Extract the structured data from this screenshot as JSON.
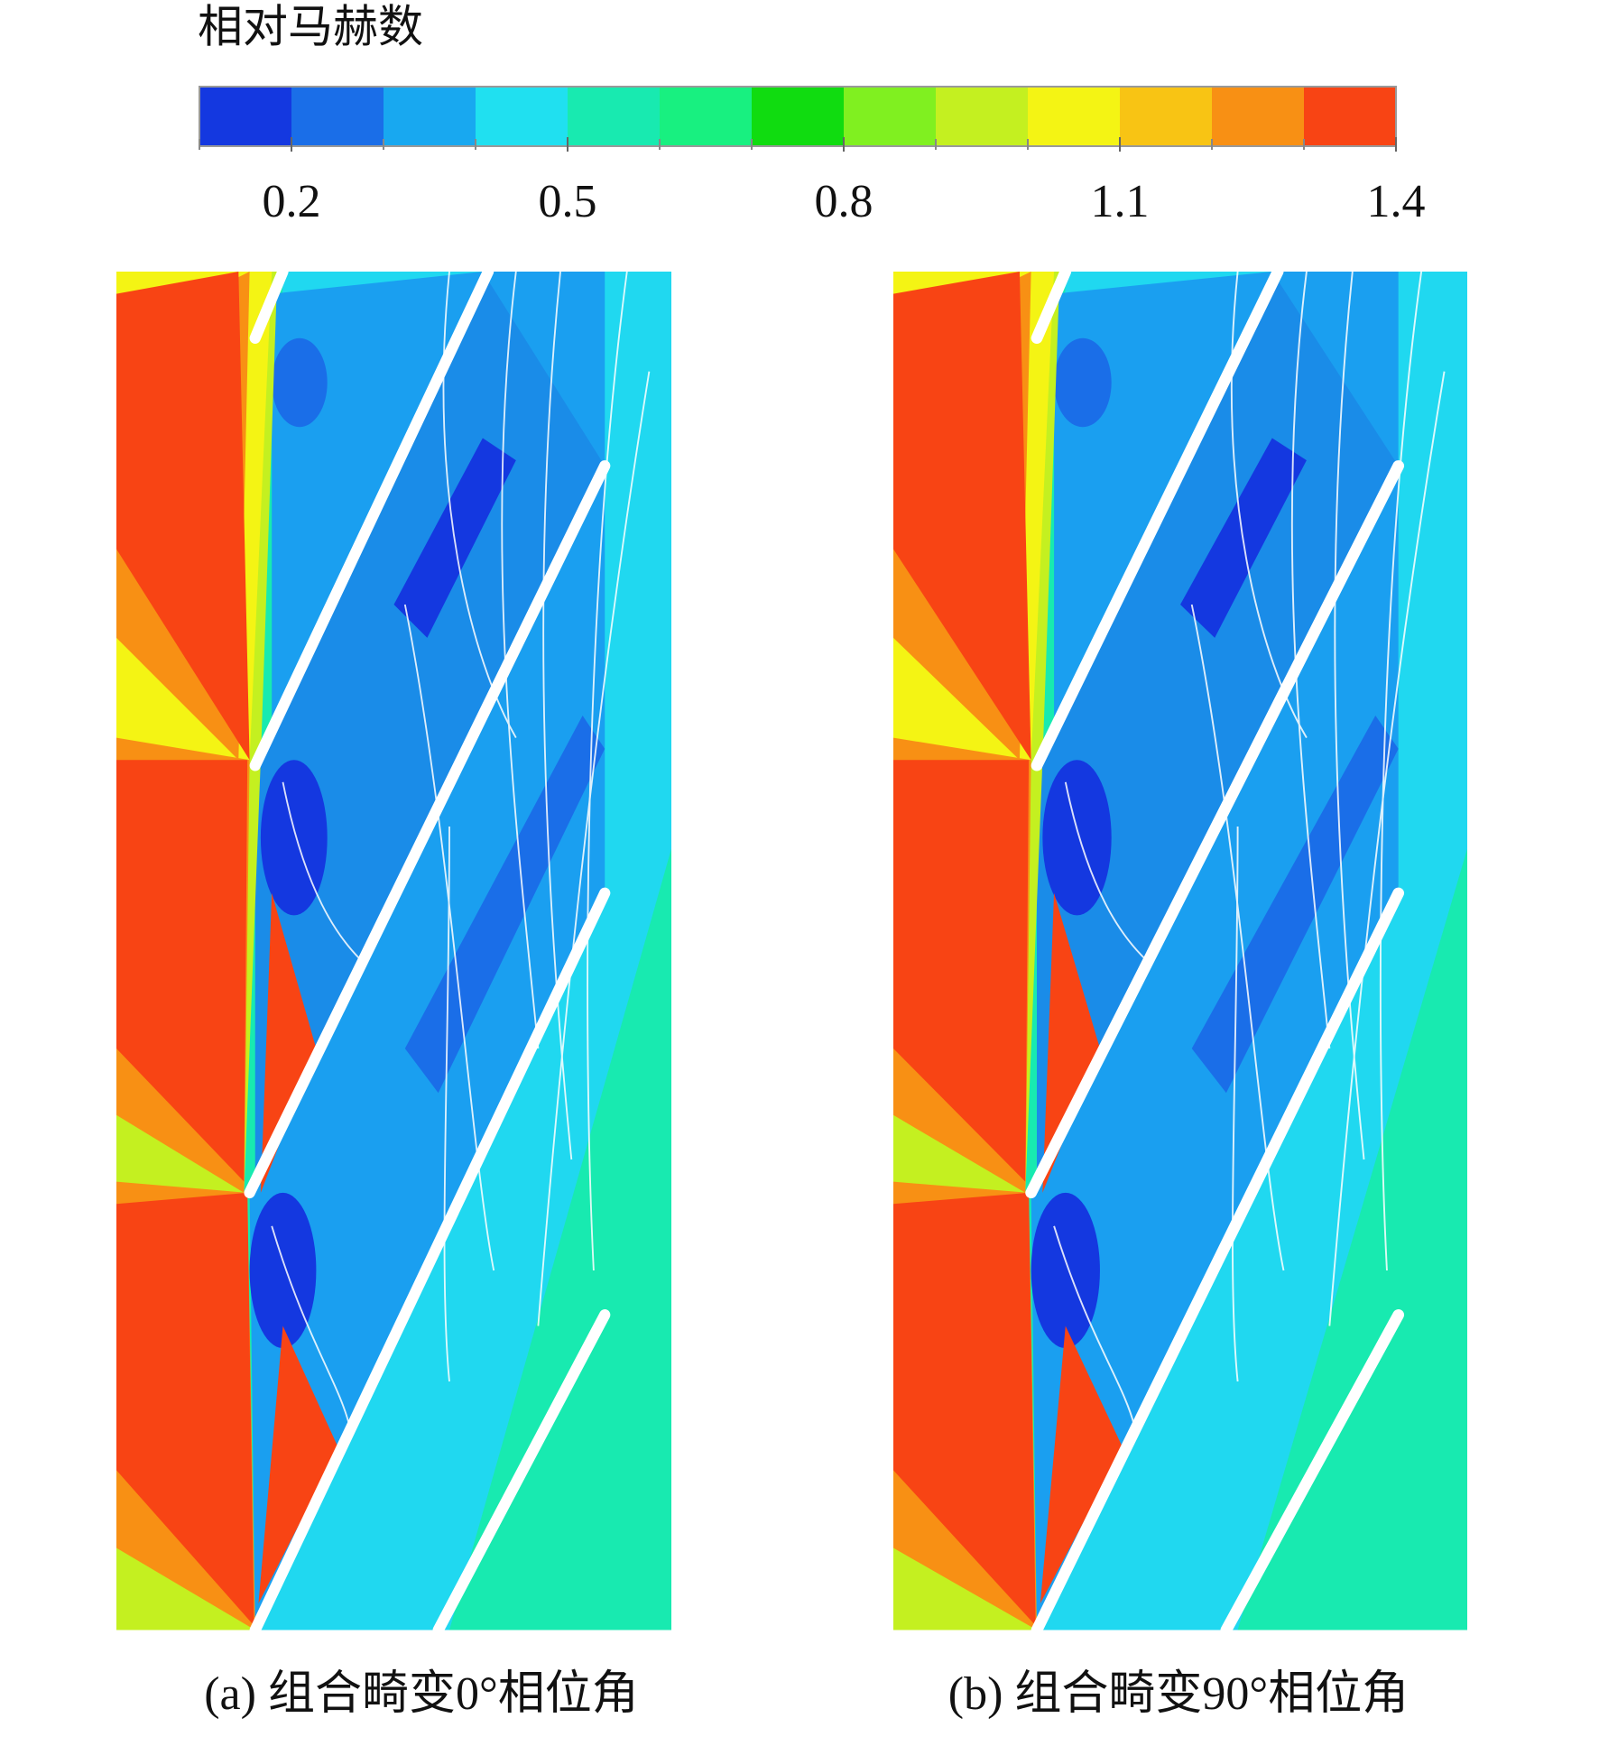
{
  "chart_data": {
    "type": "contour",
    "title": "相对马赫数",
    "colorbar": {
      "xlim": [
        0.1,
        1.4
      ],
      "xticks": [
        0.2,
        0.5,
        0.8,
        1.1,
        1.4
      ],
      "colors": [
        "#1438e0",
        "#1a6ee8",
        "#18a8f0",
        "#20e0f0",
        "#18eab0",
        "#18f080",
        "#10dc10",
        "#80f020",
        "#c4f020",
        "#f4f414",
        "#f8c414",
        "#f89014",
        "#f84414"
      ]
    },
    "panels": [
      {
        "caption": "(a) 组合畸变0°相位角"
      },
      {
        "caption": "(b) 组合畸变90°相位角"
      }
    ]
  }
}
